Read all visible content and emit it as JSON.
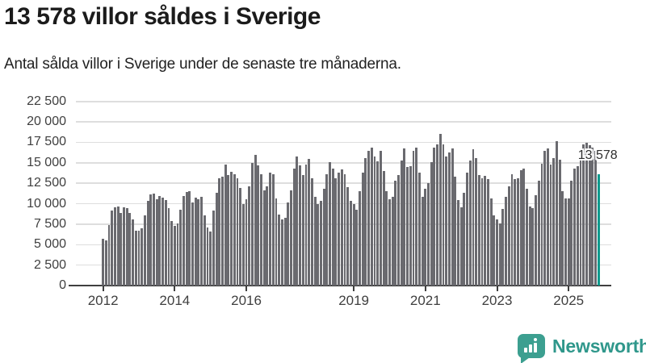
{
  "header": {
    "title": "13 578 villor såldes i Sverige",
    "subtitle": "Antal sålda villor i Sverige under de senaste tre månaderna."
  },
  "chart_data": {
    "type": "bar",
    "title": "13 578 villor såldes i Sverige",
    "xlabel": "",
    "ylabel": "",
    "grid": true,
    "legend": false,
    "ylim": [
      0,
      22500
    ],
    "y_ticks": [
      {
        "value": 0,
        "label": "0"
      },
      {
        "value": 2500,
        "label": "2 500"
      },
      {
        "value": 5000,
        "label": "5 000"
      },
      {
        "value": 7500,
        "label": "7 500"
      },
      {
        "value": 10000,
        "label": "10 000"
      },
      {
        "value": 12500,
        "label": "12 500"
      },
      {
        "value": 15000,
        "label": "15 000"
      },
      {
        "value": 17500,
        "label": "17 500"
      },
      {
        "value": 20000,
        "label": "20 000"
      },
      {
        "value": 22500,
        "label": "22 500"
      }
    ],
    "x_ticks": [
      {
        "month_index": 0,
        "label": "2012"
      },
      {
        "month_index": 24,
        "label": "2014"
      },
      {
        "month_index": 48,
        "label": "2016"
      },
      {
        "month_index": 84,
        "label": "2019"
      },
      {
        "month_index": 108,
        "label": "2021"
      },
      {
        "month_index": 132,
        "label": "2023"
      },
      {
        "month_index": 156,
        "label": "2025"
      }
    ],
    "x": [
      "2012-01",
      "2012-02",
      "2012-03",
      "2012-04",
      "2012-05",
      "2012-06",
      "2012-07",
      "2012-08",
      "2012-09",
      "2012-10",
      "2012-11",
      "2012-12",
      "2013-01",
      "2013-02",
      "2013-03",
      "2013-04",
      "2013-05",
      "2013-06",
      "2013-07",
      "2013-08",
      "2013-09",
      "2013-10",
      "2013-11",
      "2013-12",
      "2014-01",
      "2014-02",
      "2014-03",
      "2014-04",
      "2014-05",
      "2014-06",
      "2014-07",
      "2014-08",
      "2014-09",
      "2014-10",
      "2014-11",
      "2014-12",
      "2015-01",
      "2015-02",
      "2015-03",
      "2015-04",
      "2015-05",
      "2015-06",
      "2015-07",
      "2015-08",
      "2015-09",
      "2015-10",
      "2015-11",
      "2015-12",
      "2016-01",
      "2016-02",
      "2016-03",
      "2016-04",
      "2016-05",
      "2016-06",
      "2016-07",
      "2016-08",
      "2016-09",
      "2016-10",
      "2016-11",
      "2016-12",
      "2017-01",
      "2017-02",
      "2017-03",
      "2017-04",
      "2017-05",
      "2017-06",
      "2017-07",
      "2017-08",
      "2017-09",
      "2017-10",
      "2017-11",
      "2017-12",
      "2018-01",
      "2018-02",
      "2018-03",
      "2018-04",
      "2018-05",
      "2018-06",
      "2018-07",
      "2018-08",
      "2018-09",
      "2018-10",
      "2018-11",
      "2018-12",
      "2019-01",
      "2019-02",
      "2019-03",
      "2019-04",
      "2019-05",
      "2019-06",
      "2019-07",
      "2019-08",
      "2019-09",
      "2019-10",
      "2019-11",
      "2019-12",
      "2020-01",
      "2020-02",
      "2020-03",
      "2020-04",
      "2020-05",
      "2020-06",
      "2020-07",
      "2020-08",
      "2020-09",
      "2020-10",
      "2020-11",
      "2020-12",
      "2021-01",
      "2021-02",
      "2021-03",
      "2021-04",
      "2021-05",
      "2021-06",
      "2021-07",
      "2021-08",
      "2021-09",
      "2021-10",
      "2021-11",
      "2021-12",
      "2022-01",
      "2022-02",
      "2022-03",
      "2022-04",
      "2022-05",
      "2022-06",
      "2022-07",
      "2022-08",
      "2022-09",
      "2022-10",
      "2022-11",
      "2022-12",
      "2023-01",
      "2023-02",
      "2023-03",
      "2023-04",
      "2023-05",
      "2023-06",
      "2023-07",
      "2023-08",
      "2023-09",
      "2023-10",
      "2023-11",
      "2023-12",
      "2024-01",
      "2024-02",
      "2024-03",
      "2024-04",
      "2024-05",
      "2024-06",
      "2024-07",
      "2024-08",
      "2024-09",
      "2024-10",
      "2024-11",
      "2024-12",
      "2025-01",
      "2025-02",
      "2025-03",
      "2025-04",
      "2025-05",
      "2025-06",
      "2025-07",
      "2025-08",
      "2025-09",
      "2025-10",
      "2025-11"
    ],
    "values": [
      5700,
      5560,
      7390,
      9130,
      9560,
      9700,
      8870,
      9530,
      9440,
      8870,
      8050,
      6740,
      6700,
      7000,
      8600,
      10300,
      11100,
      11200,
      10500,
      10900,
      10700,
      10400,
      9500,
      7900,
      7300,
      7600,
      9300,
      10900,
      11400,
      11500,
      10200,
      10740,
      10510,
      10800,
      8540,
      7070,
      6640,
      9200,
      11350,
      13140,
      13300,
      14780,
      13500,
      13900,
      13600,
      13140,
      11950,
      10000,
      10500,
      12150,
      14940,
      15920,
      14700,
      13600,
      11660,
      12150,
      13790,
      13590,
      10680,
      8710,
      8050,
      8300,
      10180,
      11660,
      14280,
      15760,
      14680,
      13530,
      14780,
      15500,
      13140,
      10840,
      10000,
      10300,
      11800,
      13600,
      15100,
      14300,
      13100,
      13800,
      14200,
      13600,
      12000,
      10300,
      10000,
      9300,
      11500,
      13800,
      15600,
      16450,
      16840,
      15800,
      15200,
      16450,
      14000,
      11500,
      10500,
      10800,
      12800,
      13500,
      15300,
      16740,
      14450,
      14610,
      16410,
      16900,
      13790,
      10840,
      11820,
      12480,
      15100,
      16900,
      17270,
      18550,
      17270,
      15800,
      16300,
      16740,
      13300,
      10420,
      9530,
      11330,
      13790,
      15270,
      16680,
      15600,
      13530,
      13140,
      13400,
      12970,
      10680,
      8540,
      8050,
      7630,
      9370,
      10840,
      12150,
      13630,
      12970,
      13070,
      14120,
      14280,
      11820,
      9690,
      9460,
      11000,
      12810,
      14880,
      16410,
      16740,
      14780,
      15600,
      17630,
      15400,
      11490,
      10680,
      10680,
      12810,
      14280,
      14610,
      16500,
      17240,
      17470,
      17100,
      16900,
      16500,
      13578
    ],
    "bar_color": "#6a6a6f",
    "highlight": {
      "index": 166,
      "month": "2025-11",
      "value": 13578,
      "label": "13 578",
      "color": "#0f9a8d"
    }
  },
  "branding": {
    "name": "Newsworthy",
    "icon": "newsworthy-speech-bubble-chart-icon",
    "icon_color": "#3c9f90",
    "text_color": "#2f978b"
  }
}
